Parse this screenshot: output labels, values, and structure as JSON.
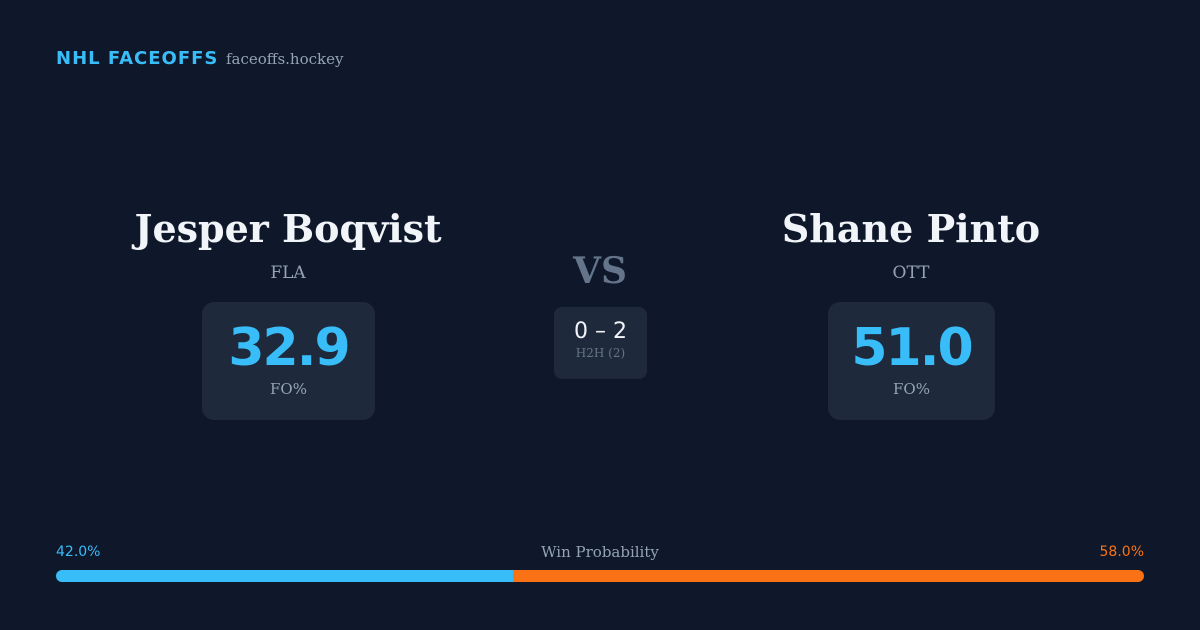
{
  "header": {
    "title": "NHL FACEOFFS",
    "site": "faceoffs.hockey"
  },
  "players": [
    {
      "name": "Jesper Boqvist",
      "team": "FLA",
      "stat": "32.9",
      "stat_label": "FO%"
    },
    {
      "name": "Shane Pinto",
      "team": "OTT",
      "stat": "51.0",
      "stat_label": "FO%"
    }
  ],
  "versus": {
    "label": "VS",
    "record": "0 – 2",
    "record_label": "H2H (2)"
  },
  "win_probability": {
    "title": "Win Probability",
    "left": {
      "value": 42.0,
      "label": "42.0%",
      "color": "#38bdf8"
    },
    "right": {
      "value": 58.0,
      "label": "58.0%",
      "color": "#f97316"
    }
  }
}
